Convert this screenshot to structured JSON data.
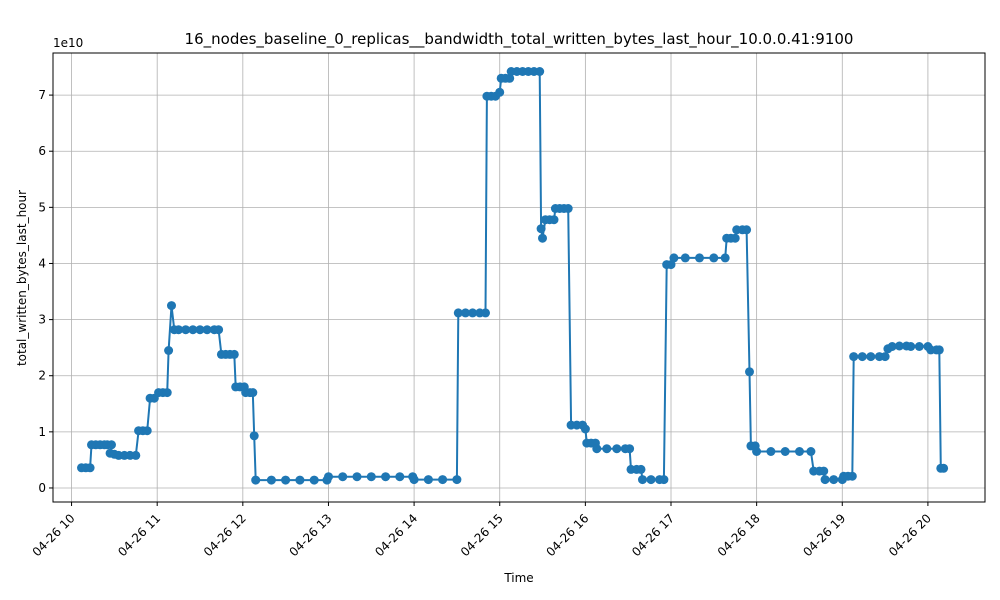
{
  "chart_data": {
    "type": "line",
    "title": "16_nodes_baseline_0_replicas__bandwidth_total_written_bytes_last_hour_10.0.0.41:9100",
    "xlabel": "Time",
    "ylabel": "total_written_bytes_last_hour",
    "y_scale_label": "1e10",
    "y_unit_multiplier": 10000000000,
    "xlim": [
      "04-26 09:47",
      "04-26 20:40"
    ],
    "ylim": [
      -0.25,
      7.75
    ],
    "grid": true,
    "legend": "none",
    "x_ticks": [
      "04-26 10:00",
      "04-26 11:00",
      "04-26 12:00",
      "04-26 13:00",
      "04-26 14:00",
      "04-26 15:00",
      "04-26 16:00",
      "04-26 17:00",
      "04-26 18:00",
      "04-26 19:00",
      "04-26 20:00"
    ],
    "x_tick_labels": [
      "04-26 10",
      "04-26 11",
      "04-26 12",
      "04-26 13",
      "04-26 14",
      "04-26 15",
      "04-26 16",
      "04-26 17",
      "04-26 18",
      "04-26 19",
      "04-26 20"
    ],
    "y_ticks": [
      0,
      1,
      2,
      3,
      4,
      5,
      6,
      7
    ],
    "y_tick_labels": [
      "0",
      "1",
      "2",
      "3",
      "4",
      "5",
      "6",
      "7"
    ],
    "series": [
      {
        "color": "#1f77b4",
        "points": [
          [
            "04-26 10:07",
            0.36
          ],
          [
            "04-26 10:10",
            0.36
          ],
          [
            "04-26 10:13",
            0.36
          ],
          [
            "04-26 10:14",
            0.77
          ],
          [
            "04-26 10:17",
            0.77
          ],
          [
            "04-26 10:20",
            0.77
          ],
          [
            "04-26 10:23",
            0.77
          ],
          [
            "04-26 10:25",
            0.77
          ],
          [
            "04-26 10:28",
            0.77
          ],
          [
            "04-26 10:27",
            0.62
          ],
          [
            "04-26 10:30",
            0.6
          ],
          [
            "04-26 10:33",
            0.58
          ],
          [
            "04-26 10:37",
            0.58
          ],
          [
            "04-26 10:41",
            0.58
          ],
          [
            "04-26 10:45",
            0.58
          ],
          [
            "04-26 10:47",
            1.02
          ],
          [
            "04-26 10:50",
            1.02
          ],
          [
            "04-26 10:53",
            1.02
          ],
          [
            "04-26 10:55",
            1.6
          ],
          [
            "04-26 10:58",
            1.6
          ],
          [
            "04-26 11:01",
            1.7
          ],
          [
            "04-26 11:04",
            1.7
          ],
          [
            "04-26 11:07",
            1.7
          ],
          [
            "04-26 11:08",
            2.45
          ],
          [
            "04-26 11:10",
            3.25
          ],
          [
            "04-26 11:12",
            2.82
          ],
          [
            "04-26 11:15",
            2.82
          ],
          [
            "04-26 11:20",
            2.82
          ],
          [
            "04-26 11:25",
            2.82
          ],
          [
            "04-26 11:30",
            2.82
          ],
          [
            "04-26 11:35",
            2.82
          ],
          [
            "04-26 11:40",
            2.82
          ],
          [
            "04-26 11:43",
            2.82
          ],
          [
            "04-26 11:45",
            2.38
          ],
          [
            "04-26 11:48",
            2.38
          ],
          [
            "04-26 11:51",
            2.38
          ],
          [
            "04-26 11:54",
            2.38
          ],
          [
            "04-26 11:55",
            1.8
          ],
          [
            "04-26 11:58",
            1.8
          ],
          [
            "04-26 12:01",
            1.8
          ],
          [
            "04-26 12:02",
            1.7
          ],
          [
            "04-26 12:05",
            1.7
          ],
          [
            "04-26 12:07",
            1.7
          ],
          [
            "04-26 12:08",
            0.93
          ],
          [
            "04-26 12:09",
            0.14
          ],
          [
            "04-26 12:20",
            0.14
          ],
          [
            "04-26 12:30",
            0.14
          ],
          [
            "04-26 12:40",
            0.14
          ],
          [
            "04-26 12:50",
            0.14
          ],
          [
            "04-26 12:59",
            0.14
          ],
          [
            "04-26 13:00",
            0.2
          ],
          [
            "04-26 13:10",
            0.2
          ],
          [
            "04-26 13:20",
            0.2
          ],
          [
            "04-26 13:30",
            0.2
          ],
          [
            "04-26 13:40",
            0.2
          ],
          [
            "04-26 13:50",
            0.2
          ],
          [
            "04-26 13:59",
            0.2
          ],
          [
            "04-26 14:00",
            0.15
          ],
          [
            "04-26 14:10",
            0.15
          ],
          [
            "04-26 14:20",
            0.15
          ],
          [
            "04-26 14:30",
            0.15
          ],
          [
            "04-26 14:31",
            3.12
          ],
          [
            "04-26 14:36",
            3.12
          ],
          [
            "04-26 14:41",
            3.12
          ],
          [
            "04-26 14:46",
            3.12
          ],
          [
            "04-26 14:50",
            3.12
          ],
          [
            "04-26 14:51",
            6.98
          ],
          [
            "04-26 14:54",
            6.98
          ],
          [
            "04-26 14:57",
            6.98
          ],
          [
            "04-26 15:00",
            7.05
          ],
          [
            "04-26 15:01",
            7.3
          ],
          [
            "04-26 15:04",
            7.3
          ],
          [
            "04-26 15:07",
            7.3
          ],
          [
            "04-26 15:08",
            7.42
          ],
          [
            "04-26 15:12",
            7.42
          ],
          [
            "04-26 15:16",
            7.42
          ],
          [
            "04-26 15:20",
            7.42
          ],
          [
            "04-26 15:24",
            7.42
          ],
          [
            "04-26 15:28",
            7.42
          ],
          [
            "04-26 15:29",
            4.62
          ],
          [
            "04-26 15:30",
            4.45
          ],
          [
            "04-26 15:32",
            4.78
          ],
          [
            "04-26 15:35",
            4.78
          ],
          [
            "04-26 15:38",
            4.78
          ],
          [
            "04-26 15:39",
            4.98
          ],
          [
            "04-26 15:42",
            4.98
          ],
          [
            "04-26 15:45",
            4.98
          ],
          [
            "04-26 15:48",
            4.98
          ],
          [
            "04-26 15:50",
            1.12
          ],
          [
            "04-26 15:54",
            1.12
          ],
          [
            "04-26 15:58",
            1.12
          ],
          [
            "04-26 16:00",
            1.05
          ],
          [
            "04-26 16:01",
            0.8
          ],
          [
            "04-26 16:04",
            0.8
          ],
          [
            "04-26 16:07",
            0.8
          ],
          [
            "04-26 16:08",
            0.7
          ],
          [
            "04-26 16:15",
            0.7
          ],
          [
            "04-26 16:22",
            0.7
          ],
          [
            "04-26 16:28",
            0.7
          ],
          [
            "04-26 16:31",
            0.7
          ],
          [
            "04-26 16:32",
            0.33
          ],
          [
            "04-26 16:36",
            0.33
          ],
          [
            "04-26 16:39",
            0.33
          ],
          [
            "04-26 16:40",
            0.15
          ],
          [
            "04-26 16:46",
            0.15
          ],
          [
            "04-26 16:52",
            0.15
          ],
          [
            "04-26 16:55",
            0.15
          ],
          [
            "04-26 16:57",
            3.98
          ],
          [
            "04-26 17:00",
            3.98
          ],
          [
            "04-26 17:02",
            4.1
          ],
          [
            "04-26 17:10",
            4.1
          ],
          [
            "04-26 17:20",
            4.1
          ],
          [
            "04-26 17:30",
            4.1
          ],
          [
            "04-26 17:38",
            4.1
          ],
          [
            "04-26 17:39",
            4.45
          ],
          [
            "04-26 17:42",
            4.45
          ],
          [
            "04-26 17:45",
            4.45
          ],
          [
            "04-26 17:46",
            4.6
          ],
          [
            "04-26 17:50",
            4.6
          ],
          [
            "04-26 17:53",
            4.6
          ],
          [
            "04-26 17:55",
            2.07
          ],
          [
            "04-26 17:56",
            0.75
          ],
          [
            "04-26 17:59",
            0.75
          ],
          [
            "04-26 18:00",
            0.65
          ],
          [
            "04-26 18:10",
            0.65
          ],
          [
            "04-26 18:20",
            0.65
          ],
          [
            "04-26 18:30",
            0.65
          ],
          [
            "04-26 18:38",
            0.65
          ],
          [
            "04-26 18:40",
            0.3
          ],
          [
            "04-26 18:44",
            0.3
          ],
          [
            "04-26 18:47",
            0.3
          ],
          [
            "04-26 18:48",
            0.15
          ],
          [
            "04-26 18:54",
            0.15
          ],
          [
            "04-26 19:00",
            0.15
          ],
          [
            "04-26 19:01",
            0.21
          ],
          [
            "04-26 19:04",
            0.21
          ],
          [
            "04-26 19:07",
            0.21
          ],
          [
            "04-26 19:08",
            2.34
          ],
          [
            "04-26 19:14",
            2.34
          ],
          [
            "04-26 19:20",
            2.34
          ],
          [
            "04-26 19:26",
            2.34
          ],
          [
            "04-26 19:30",
            2.34
          ],
          [
            "04-26 19:32",
            2.48
          ],
          [
            "04-26 19:35",
            2.52
          ],
          [
            "04-26 19:40",
            2.53
          ],
          [
            "04-26 19:45",
            2.53
          ],
          [
            "04-26 19:48",
            2.52
          ],
          [
            "04-26 19:54",
            2.52
          ],
          [
            "04-26 20:00",
            2.52
          ],
          [
            "04-26 20:02",
            2.46
          ],
          [
            "04-26 20:06",
            2.46
          ],
          [
            "04-26 20:08",
            2.46
          ],
          [
            "04-26 20:09",
            0.35
          ],
          [
            "04-26 20:11",
            0.35
          ]
        ]
      }
    ]
  }
}
